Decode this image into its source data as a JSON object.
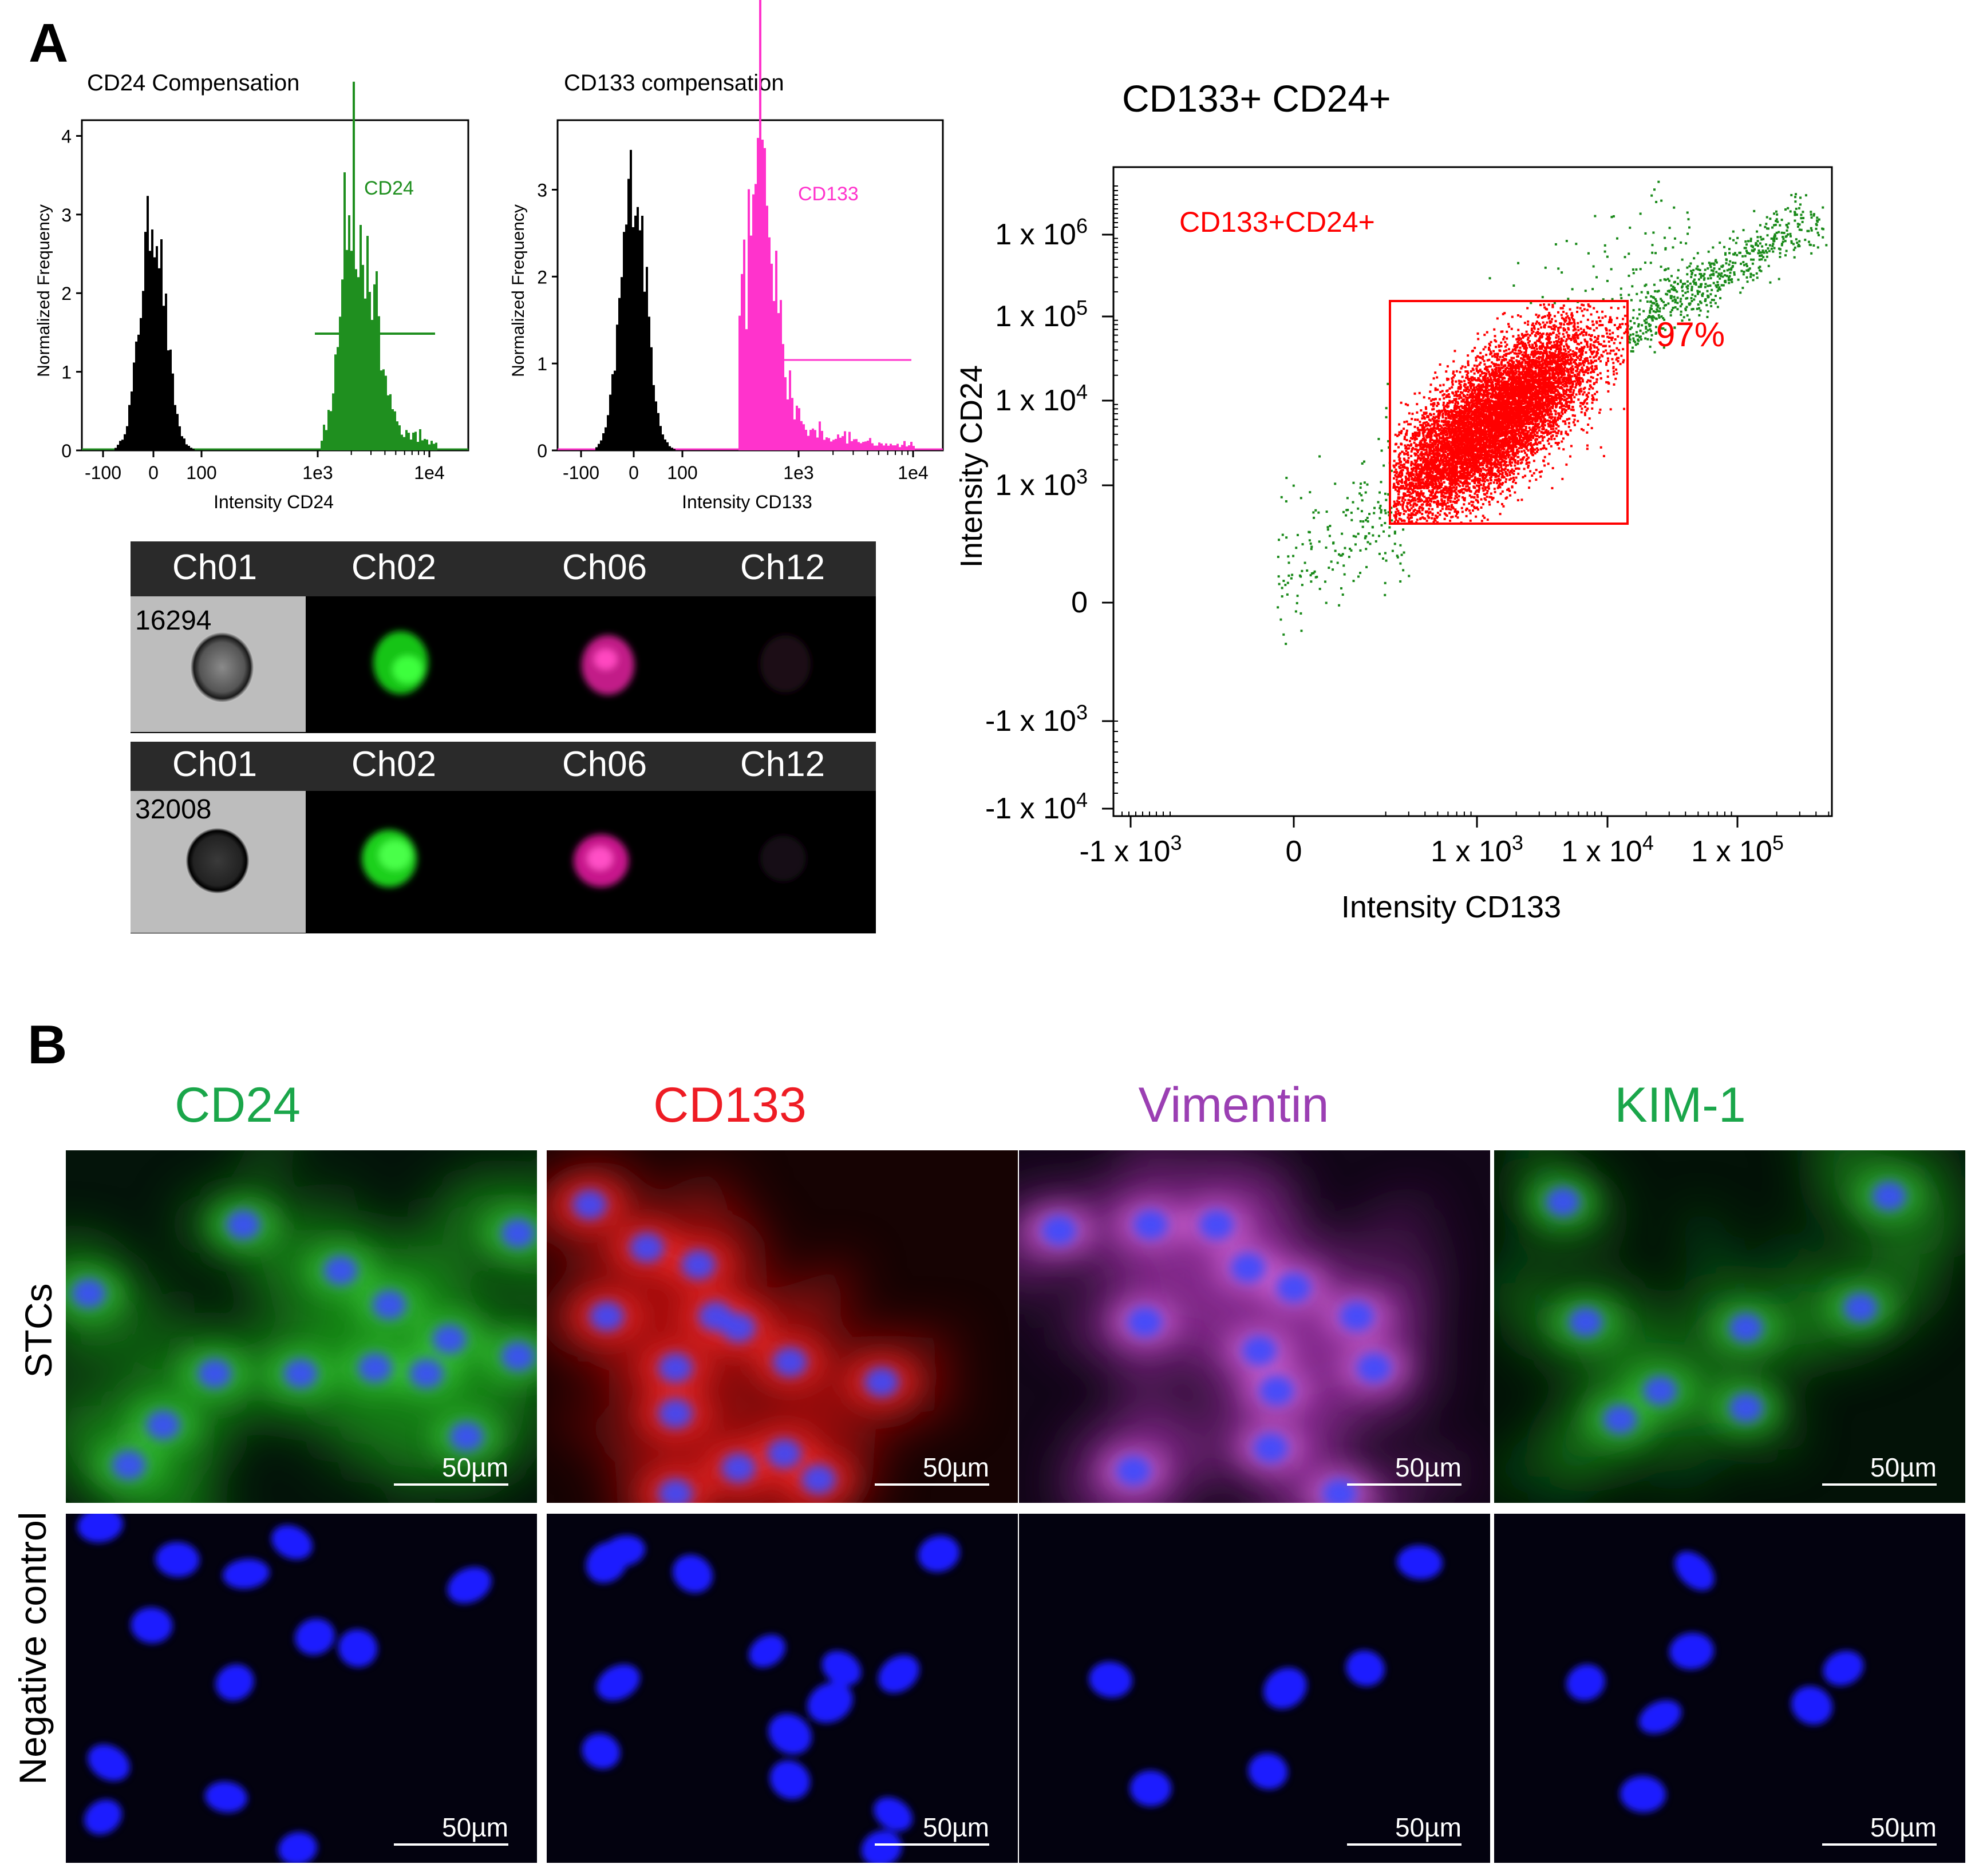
{
  "panel_a": {
    "letter": "A",
    "hist_cd24": {
      "title": "CD24 Compensation",
      "ylabel": "Normalized Frequency",
      "xlabel": "Intensity CD24",
      "marker": "CD24",
      "marker_color": "#1f8f1f",
      "yticks": [
        "0",
        "1",
        "2",
        "3",
        "4"
      ],
      "xticks": [
        "-100",
        "0",
        "100",
        "1e3",
        "1e4"
      ]
    },
    "hist_cd133": {
      "title": "CD133 compensation",
      "ylabel": "Normalized Frequency",
      "xlabel": "Intensity CD133",
      "marker": "CD133",
      "marker_color": "#ff33cc",
      "yticks": [
        "0",
        "1",
        "2",
        "3"
      ],
      "xticks": [
        "-100",
        "0",
        "100",
        "1e3",
        "1e4"
      ]
    },
    "gallery": {
      "channels": [
        "Ch01",
        "Ch02",
        "Ch06",
        "Ch12"
      ],
      "rows": [
        {
          "object_id": "16294"
        },
        {
          "object_id": "32008"
        }
      ]
    },
    "scatter": {
      "title": "CD133+ CD24+",
      "gate_label": "CD133+CD24+",
      "gate_percent": "97%",
      "xlabel": "Intensity CD133",
      "ylabel": "Intensity CD24",
      "yticks": [
        {
          "base": "1 x 10",
          "exp": "6"
        },
        {
          "base": "1 x 10",
          "exp": "5"
        },
        {
          "base": "1 x 10",
          "exp": "4"
        },
        {
          "base": "1 x 10",
          "exp": "3"
        },
        {
          "base": "0",
          "exp": ""
        },
        {
          "base": "-1 x 10",
          "exp": "3"
        },
        {
          "base": "-1 x 10",
          "exp": "4"
        }
      ],
      "xticks": [
        {
          "base": "-1 x 10",
          "exp": "3"
        },
        {
          "base": "0",
          "exp": ""
        },
        {
          "base": "1 x 10",
          "exp": "3"
        },
        {
          "base": "1 x 10",
          "exp": "4"
        },
        {
          "base": "1 x 10",
          "exp": "5"
        }
      ],
      "gate_color": "#ff0000",
      "outside_color": "#1a8a1a"
    }
  },
  "panel_b": {
    "letter": "B",
    "columns": [
      {
        "label": "CD24",
        "color": "#1aa64a"
      },
      {
        "label": "CD133",
        "color": "#ee1c24"
      },
      {
        "label": "Vimentin",
        "color": "#9b3fb3"
      },
      {
        "label": "KIM-1",
        "color": "#1aa64a"
      }
    ],
    "rows": [
      "STCs",
      "Negative control"
    ],
    "scale_bar": "50µm"
  },
  "chart_data": [
    {
      "type": "histogram",
      "title": "CD24 Compensation",
      "xlabel": "Intensity CD24",
      "ylabel": "Normalized Frequency",
      "ylim": [
        0,
        4.2
      ],
      "series": [
        {
          "name": "",
          "color": "#000000",
          "peak_x": 0,
          "peak_y": 3.3
        },
        {
          "name": "CD24",
          "color": "#1f8f1f",
          "peak_x": 2200,
          "peak_y": 3.7
        }
      ]
    },
    {
      "type": "histogram",
      "title": "CD133 compensation",
      "xlabel": "Intensity CD133",
      "ylabel": "Normalized Frequency",
      "ylim": [
        0,
        3.8
      ],
      "series": [
        {
          "name": "",
          "color": "#000000",
          "peak_x": 0,
          "peak_y": 3.4
        },
        {
          "name": "CD133",
          "color": "#ff33cc",
          "peak_x": 550,
          "peak_y": 3.5
        }
      ]
    },
    {
      "type": "scatter",
      "title": "CD133+ CD24+",
      "xlabel": "Intensity CD133",
      "ylabel": "Intensity CD24",
      "gate": {
        "label": "CD133+CD24+",
        "percent": 97
      }
    }
  ]
}
